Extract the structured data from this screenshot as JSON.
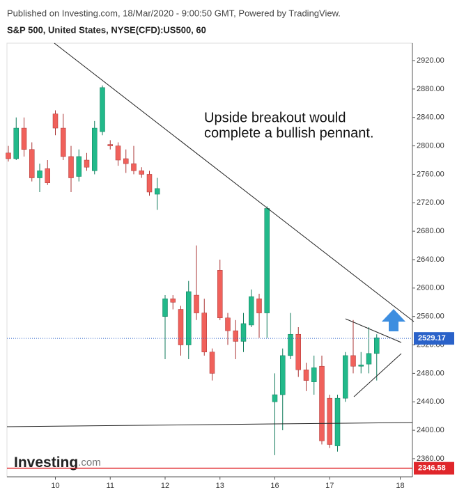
{
  "chart_data": {
    "type": "candlestick",
    "header": "Published on Investing.com, 18/Mar/2020 - 9:00:50 GMT, Powered by TradingView.",
    "title": "S&P 500, United States, NYSE(CFD):US500, 60",
    "annotation": [
      "Upside breakout would",
      "complete a bullish pennant."
    ],
    "logo": {
      "main": "Investing",
      "suffix": ".com"
    },
    "categories": [
      null,
      null,
      null,
      null,
      null,
      null,
      "10",
      null,
      null,
      null,
      null,
      null,
      null,
      "11",
      null,
      null,
      null,
      null,
      null,
      null,
      "12",
      null,
      null,
      null,
      null,
      null,
      null,
      "13",
      null,
      null,
      null,
      null,
      null,
      null,
      "16",
      null,
      null,
      null,
      null,
      null,
      null,
      "17",
      null,
      null,
      null,
      null,
      null,
      null,
      null,
      null,
      "18"
    ],
    "open": [
      2790,
      2782,
      2825,
      2795,
      2755,
      2768,
      2845,
      2825,
      2785,
      2757,
      2780,
      2765,
      2820,
      2802,
      2800,
      2782,
      2775,
      2765,
      2760,
      2732,
      2560,
      2585,
      2570,
      2520,
      2590,
      2565,
      2510,
      2625,
      2558,
      2540,
      2525,
      2548,
      2585,
      2565,
      2440,
      2450,
      2505,
      2535,
      2485,
      2468,
      2490,
      2445,
      2378,
      2445,
      2505,
      2490,
      2493,
      2508,
      null,
      null,
      null
    ],
    "high": [
      2800,
      2840,
      2840,
      2805,
      2775,
      2780,
      2850,
      2845,
      2800,
      2795,
      2790,
      2835,
      2885,
      2808,
      2805,
      2795,
      2800,
      2770,
      2765,
      2755,
      2590,
      2590,
      2575,
      2610,
      2660,
      2585,
      2515,
      2640,
      2565,
      2555,
      2565,
      2598,
      2592,
      2715,
      2480,
      2515,
      2565,
      2545,
      2495,
      2505,
      2505,
      2450,
      2450,
      2510,
      2555,
      2510,
      2545,
      2535,
      null,
      null,
      null
    ],
    "low": [
      2778,
      2780,
      2785,
      2750,
      2735,
      2745,
      2815,
      2780,
      2735,
      2750,
      2765,
      2760,
      2815,
      2795,
      2772,
      2762,
      2760,
      2755,
      2730,
      2710,
      2500,
      2570,
      2505,
      2500,
      2555,
      2505,
      2470,
      2555,
      2520,
      2500,
      2510,
      2545,
      2530,
      2530,
      2365,
      2400,
      2500,
      2475,
      2455,
      2450,
      2380,
      2375,
      2370,
      2440,
      2480,
      2480,
      2480,
      2470,
      null,
      null,
      null
    ],
    "close": [
      2782,
      2825,
      2795,
      2755,
      2765,
      2748,
      2825,
      2785,
      2755,
      2785,
      2770,
      2825,
      2882,
      2800,
      2780,
      2775,
      2765,
      2760,
      2735,
      2740,
      2585,
      2580,
      2520,
      2595,
      2565,
      2510,
      2480,
      2558,
      2540,
      2525,
      2550,
      2588,
      2565,
      2712,
      2450,
      2505,
      2535,
      2485,
      2470,
      2488,
      2385,
      2380,
      2445,
      2505,
      2490,
      2492,
      2508,
      2530,
      null,
      null,
      null
    ],
    "up_color": "#22b98a",
    "down_color": "#f0615b",
    "ylim": [
      2334.5,
      2944.5
    ],
    "yticks": [
      {
        "value": 2360,
        "label": "2360.00"
      },
      {
        "value": 2400,
        "label": "2400.00"
      },
      {
        "value": 2440,
        "label": "2440.00"
      },
      {
        "value": 2480,
        "label": "2480.00"
      },
      {
        "value": 2520,
        "label": "2520.00"
      },
      {
        "value": 2560,
        "label": "2560.00"
      },
      {
        "value": 2600,
        "label": "2600.00"
      },
      {
        "value": 2640,
        "label": "2640.00"
      },
      {
        "value": 2680,
        "label": "2680.00"
      },
      {
        "value": 2720,
        "label": "2720.00"
      },
      {
        "value": 2760,
        "label": "2760.00"
      },
      {
        "value": 2800,
        "label": "2800.00"
      },
      {
        "value": 2840,
        "label": "2840.00"
      },
      {
        "value": 2880,
        "label": "2880.00"
      },
      {
        "value": 2920,
        "label": "2920.00"
      }
    ],
    "last_price": {
      "value": 2529.17,
      "label": "2529.17",
      "color": "#2a62c9"
    },
    "low_line": {
      "value": 2346.58,
      "label": "2346.58",
      "color": "#e0262b"
    }
  }
}
